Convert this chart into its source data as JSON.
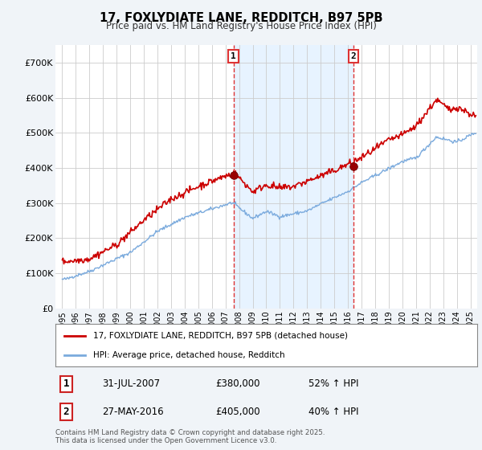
{
  "title_line1": "17, FOXLYDIATE LANE, REDDITCH, B97 5PB",
  "title_line2": "Price paid vs. HM Land Registry's House Price Index (HPI)",
  "background_color": "#f0f4f8",
  "plot_bg_color": "#ffffff",
  "shade_color": "#ddeeff",
  "red_color": "#cc0000",
  "blue_color": "#7aaadd",
  "vline_color": "#dd3333",
  "ylim": [
    0,
    750000
  ],
  "yticks": [
    0,
    100000,
    200000,
    300000,
    400000,
    500000,
    600000,
    700000
  ],
  "ytick_labels": [
    "£0",
    "£100K",
    "£200K",
    "£300K",
    "£400K",
    "£500K",
    "£600K",
    "£700K"
  ],
  "legend_red_label": "17, FOXLYDIATE LANE, REDDITCH, B97 5PB (detached house)",
  "legend_blue_label": "HPI: Average price, detached house, Redditch",
  "marker1_date": "31-JUL-2007",
  "marker1_price": "£380,000",
  "marker1_hpi": "52% ↑ HPI",
  "marker1_x": 2007.58,
  "marker1_y": 380000,
  "marker2_date": "27-MAY-2016",
  "marker2_price": "£405,000",
  "marker2_hpi": "40% ↑ HPI",
  "marker2_x": 2016.41,
  "marker2_y": 405000,
  "footer_text": "Contains HM Land Registry data © Crown copyright and database right 2025.\nThis data is licensed under the Open Government Licence v3.0.",
  "xlim": [
    1994.5,
    2025.5
  ]
}
